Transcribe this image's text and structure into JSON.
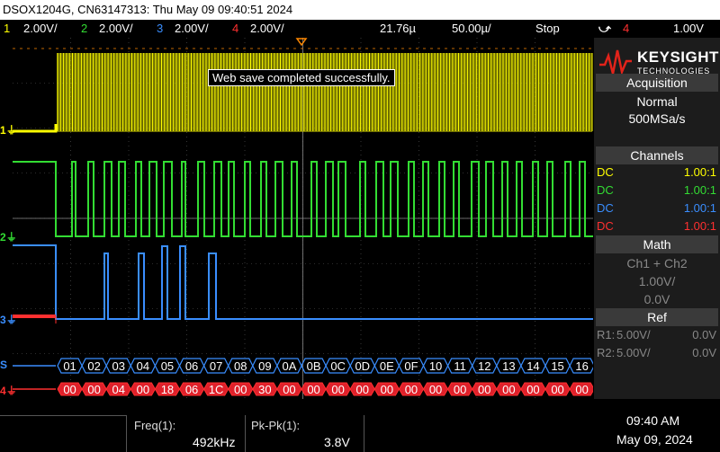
{
  "title": "DSOX1204G, CN63147313: Thu May 09 09:40:51 2024",
  "status": {
    "ch1": {
      "num": "1",
      "scale": "2.00V/",
      "color": "#ffff00"
    },
    "ch2": {
      "num": "2",
      "scale": "2.00V/",
      "color": "#33dd33"
    },
    "ch3": {
      "num": "3",
      "scale": "2.00V/",
      "color": "#3a8eff"
    },
    "ch4": {
      "num": "4",
      "scale": "2.00V/",
      "color": "#ff3030"
    },
    "delay": "21.76µ",
    "timebase": "50.00µ/",
    "run_state": "Stop",
    "trigger_icon": "rising-edge-icon",
    "trigger_source": "4",
    "trigger_level": "1.00V"
  },
  "toast": "Web save completed successfully.",
  "brand": {
    "name": "KEYSIGHT",
    "sub": "TECHNOLOGIES"
  },
  "acquisition": {
    "header": "Acquisition",
    "mode": "Normal",
    "rate": "500MSa/s"
  },
  "channels": {
    "header": "Channels",
    "rows": [
      {
        "coupling": "DC",
        "ratio": "1.00:1",
        "color": "#ffff00"
      },
      {
        "coupling": "DC",
        "ratio": "1.00:1",
        "color": "#33dd33"
      },
      {
        "coupling": "DC",
        "ratio": "1.00:1",
        "color": "#3a8eff"
      },
      {
        "coupling": "DC",
        "ratio": "1.00:1",
        "color": "#ff3030"
      }
    ]
  },
  "math": {
    "header": "Math",
    "func": "Ch1 + Ch2",
    "scale": "1.00V/",
    "offset": "0.0V"
  },
  "ref": {
    "header": "Ref",
    "rows": [
      {
        "name": "R1:",
        "scale": "5.00V/",
        "offset": "0.0V"
      },
      {
        "name": "R2:",
        "scale": "5.00V/",
        "offset": "0.0V"
      }
    ]
  },
  "channel_markers": {
    "ch1": "1",
    "ch2": "2",
    "ch3": "3",
    "ch4": "4",
    "s": "S"
  },
  "serial": {
    "row1": [
      "01",
      "02",
      "03",
      "04",
      "05",
      "06",
      "07",
      "08",
      "09",
      "0A",
      "0B",
      "0C",
      "0D",
      "0E",
      "0F",
      "10",
      "11",
      "12",
      "13",
      "14",
      "15",
      "16"
    ],
    "row2": [
      "00",
      "00",
      "04",
      "00",
      "18",
      "06",
      "1C",
      "00",
      "30",
      "00",
      "00",
      "00",
      "00",
      "00",
      "00",
      "00",
      "00",
      "00",
      "00",
      "00",
      "00",
      "00"
    ]
  },
  "measurements": {
    "freq_label": "Freq(1):",
    "freq_value": "492kHz",
    "pkpk_label": "Pk-Pk(1):",
    "pkpk_value": "3.8V"
  },
  "clock": {
    "time": "09:40 AM",
    "date": "May 09, 2024"
  }
}
